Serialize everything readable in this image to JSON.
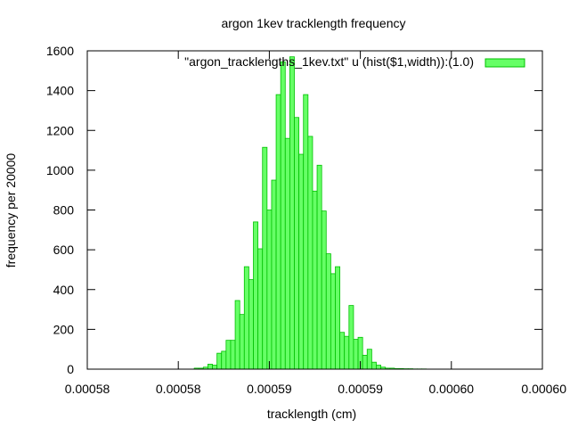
{
  "chart_data": {
    "type": "bar",
    "title": "argon 1kev tracklength frequency",
    "xlabel": "tracklength (cm)",
    "ylabel": "frequency per 20000",
    "xlim": [
      0.000577,
      0.000602
    ],
    "ylim": [
      0,
      1600
    ],
    "xticks": [
      0.000577,
      0.000582,
      0.000587,
      0.000592,
      0.000597,
      0.000602
    ],
    "xtick_labels": [
      "0.00058",
      "0.00058",
      "0.00059",
      "0.00059",
      "0.00060",
      "0.00060"
    ],
    "yticks": [
      0,
      200,
      400,
      600,
      800,
      1000,
      1200,
      1400,
      1600
    ],
    "bin_width": 2.5e-07,
    "grid": false,
    "legend_position": "top-right",
    "series": [
      {
        "name": "\"argon_tracklengths_1kev.txt\" u (hist($1,width)):(1.0)",
        "color": "#66ff66",
        "edge_color": "#00c000",
        "x": [
          0.000583,
          0.00058325,
          0.0005835,
          0.00058375,
          0.000584,
          0.00058425,
          0.0005845,
          0.00058475,
          0.000585,
          0.00058525,
          0.0005855,
          0.00058575,
          0.000586,
          0.00058625,
          0.0005865,
          0.00058675,
          0.000587,
          0.00058725,
          0.0005875,
          0.00058775,
          0.000588,
          0.00058825,
          0.0005885,
          0.00058875,
          0.000589,
          0.00058925,
          0.0005895,
          0.00058975,
          0.00059,
          0.00059025,
          0.0005905,
          0.00059075,
          0.000591,
          0.00059125,
          0.0005915,
          0.00059175,
          0.000592,
          0.00059225,
          0.0005925,
          0.00059275,
          0.000593,
          0.00059325,
          0.0005935,
          0.00059375,
          0.000594,
          0.00059425,
          0.0005945,
          0.00059475,
          0.000595,
          0.00059525,
          0.0005955
        ],
        "values": [
          5,
          5,
          10,
          25,
          20,
          80,
          90,
          145,
          145,
          345,
          275,
          515,
          450,
          740,
          605,
          1115,
          800,
          950,
          1380,
          1545,
          1160,
          1570,
          1265,
          1080,
          1380,
          1170,
          895,
          1025,
          795,
          580,
          480,
          515,
          185,
          165,
          320,
          150,
          160,
          70,
          100,
          35,
          20,
          10,
          5,
          5,
          3,
          3,
          2,
          2,
          1,
          1,
          1
        ]
      }
    ]
  }
}
